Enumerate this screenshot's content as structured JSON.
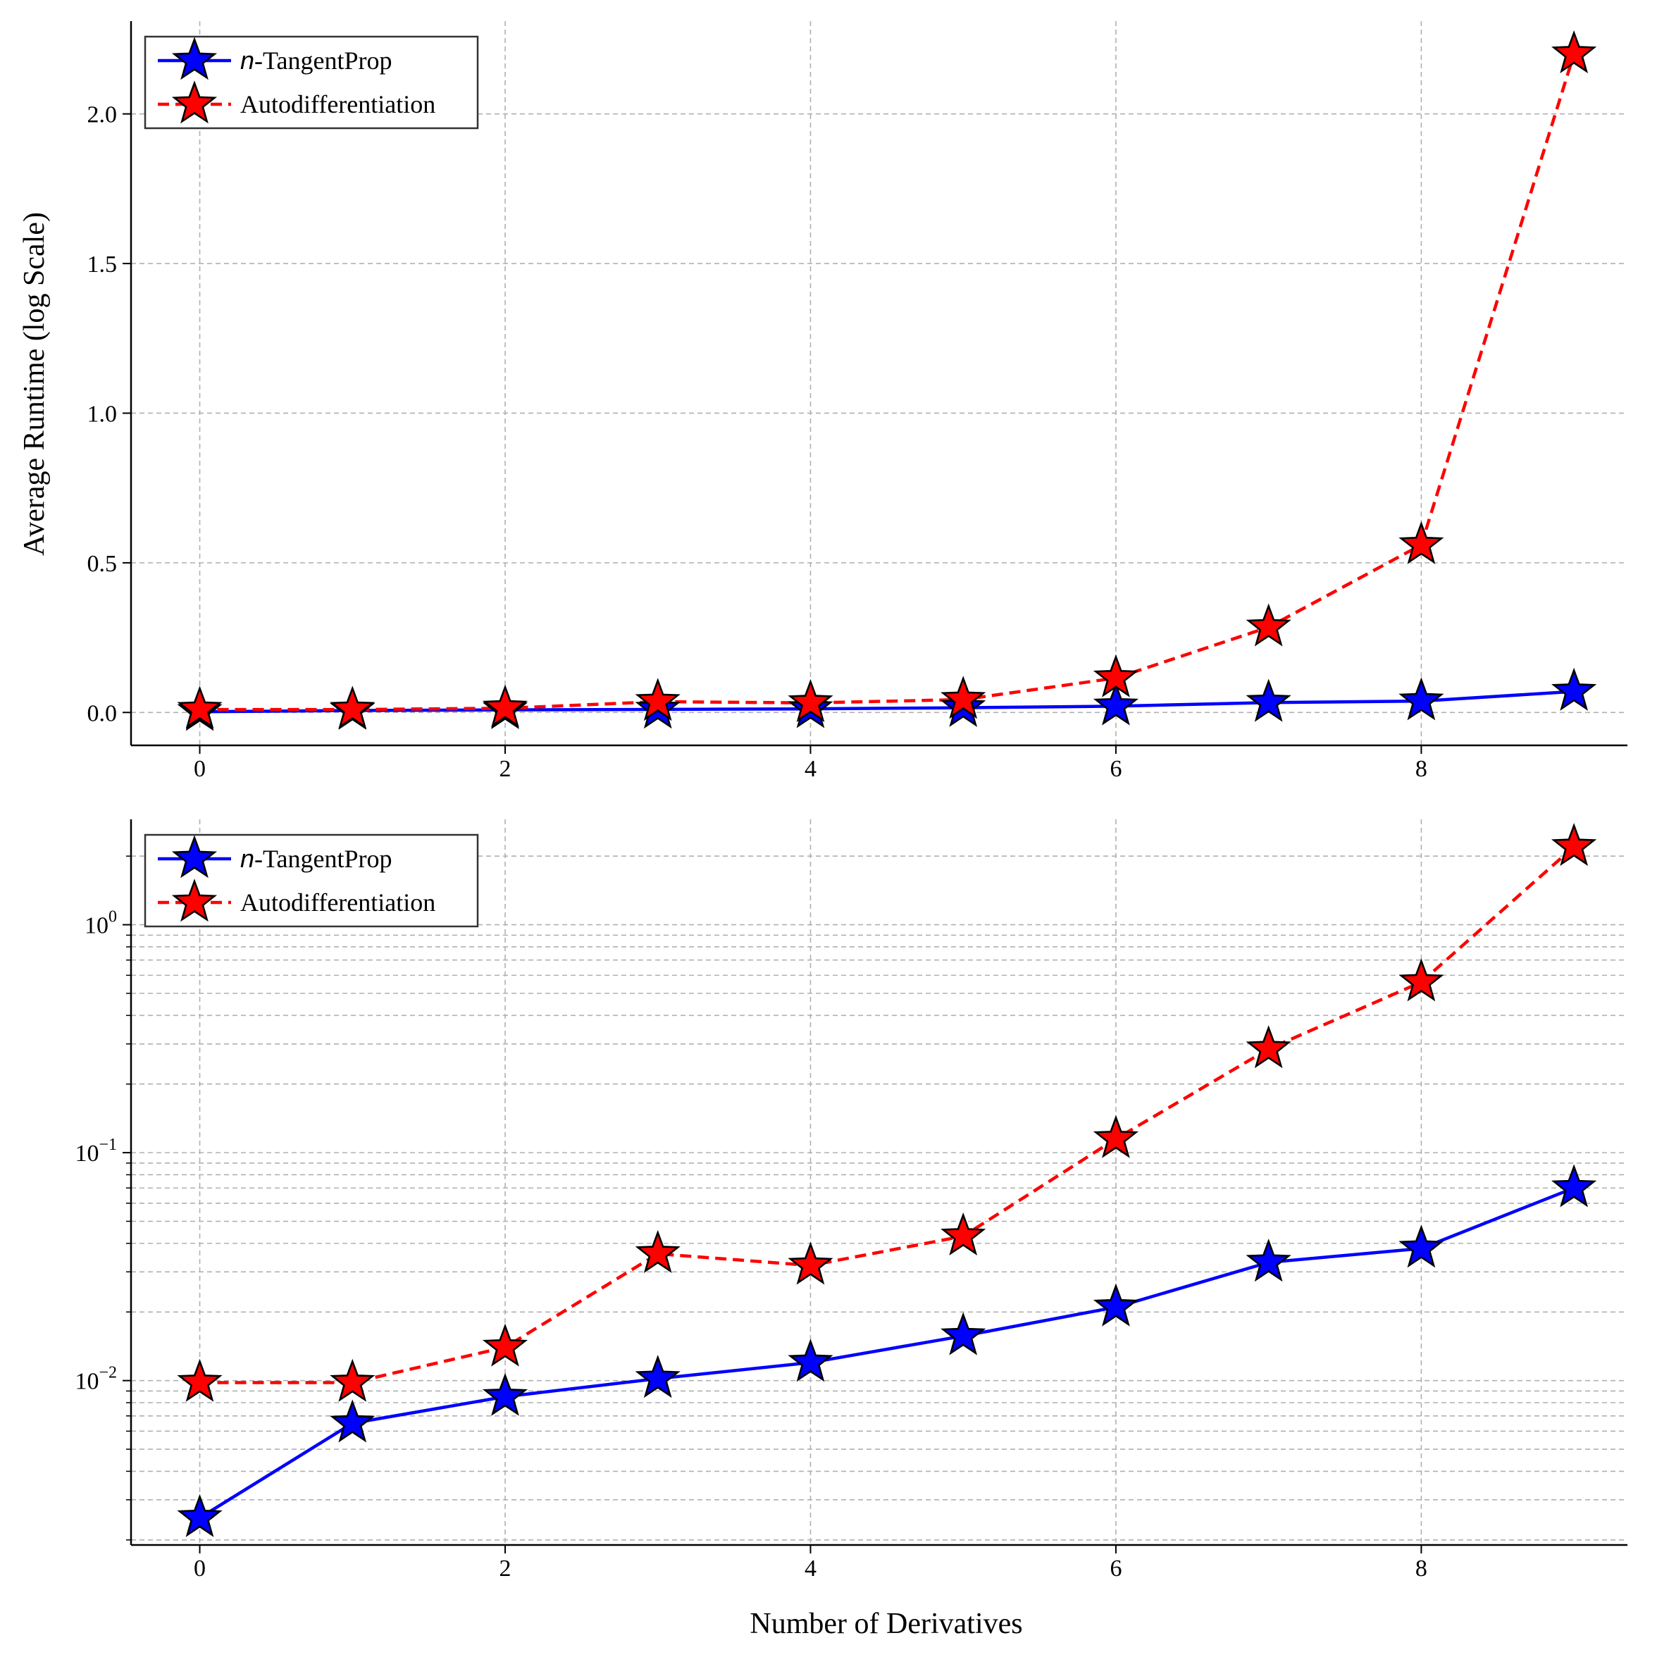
{
  "figure": {
    "xlabel": "Number of Derivatives",
    "ylabel": "Average Runtime (log Scale)"
  },
  "colors": {
    "ntangentprop": "#0000ff",
    "autodiff": "#ff0000",
    "grid": "#b0b0b0",
    "marker_edge": "#000000"
  },
  "chart_data": [
    {
      "type": "line",
      "panel": "top",
      "yscale": "linear",
      "x": [
        0,
        1,
        2,
        3,
        4,
        5,
        6,
        7,
        8,
        9
      ],
      "xlim": [
        -0.45,
        9.35
      ],
      "ylim": [
        -0.11,
        2.31
      ],
      "xticks": [
        0,
        2,
        4,
        6,
        8
      ],
      "yticks": [
        0.0,
        0.5,
        1.0,
        1.5,
        2.0
      ],
      "ytick_labels": [
        "0.0",
        "0.5",
        "1.0",
        "1.5",
        "2.0"
      ],
      "grid": true,
      "legend_position": "top-left",
      "series": [
        {
          "name": "n-TangentProp",
          "name_italic": "n",
          "name_rest": "-TangentProp",
          "color": "#0000ff",
          "linestyle": "solid",
          "marker": "star",
          "values": [
            0.0025,
            0.0065,
            0.0085,
            0.0102,
            0.012,
            0.0157,
            0.021,
            0.033,
            0.038,
            0.07
          ]
        },
        {
          "name": "Autodifferentiation",
          "name_italic": "",
          "name_rest": "Autodifferentiation",
          "color": "#ff0000",
          "linestyle": "dashed",
          "marker": "star",
          "values": [
            0.0098,
            0.0098,
            0.014,
            0.036,
            0.032,
            0.043,
            0.115,
            0.285,
            0.56,
            2.2
          ]
        }
      ]
    },
    {
      "type": "line",
      "panel": "bottom",
      "yscale": "log",
      "x": [
        0,
        1,
        2,
        3,
        4,
        5,
        6,
        7,
        8,
        9
      ],
      "xlim": [
        -0.45,
        9.35
      ],
      "ylim": [
        0.0019,
        2.9
      ],
      "xticks": [
        0,
        2,
        4,
        6,
        8
      ],
      "yticks": [
        0.01,
        0.1,
        1
      ],
      "ytick_labels": [
        {
          "base": "10",
          "exp": "−2"
        },
        {
          "base": "10",
          "exp": "−1"
        },
        {
          "base": "10",
          "exp": "0"
        }
      ],
      "grid": true,
      "legend_position": "top-left",
      "series": [
        {
          "name": "n-TangentProp",
          "name_italic": "n",
          "name_rest": "-TangentProp",
          "color": "#0000ff",
          "linestyle": "solid",
          "marker": "star",
          "values": [
            0.0025,
            0.0065,
            0.0085,
            0.0102,
            0.012,
            0.0157,
            0.021,
            0.033,
            0.038,
            0.07
          ]
        },
        {
          "name": "Autodifferentiation",
          "name_italic": "",
          "name_rest": "Autodifferentiation",
          "color": "#ff0000",
          "linestyle": "dashed",
          "marker": "star",
          "values": [
            0.0098,
            0.0098,
            0.014,
            0.036,
            0.032,
            0.043,
            0.115,
            0.285,
            0.56,
            2.2
          ]
        }
      ]
    }
  ]
}
